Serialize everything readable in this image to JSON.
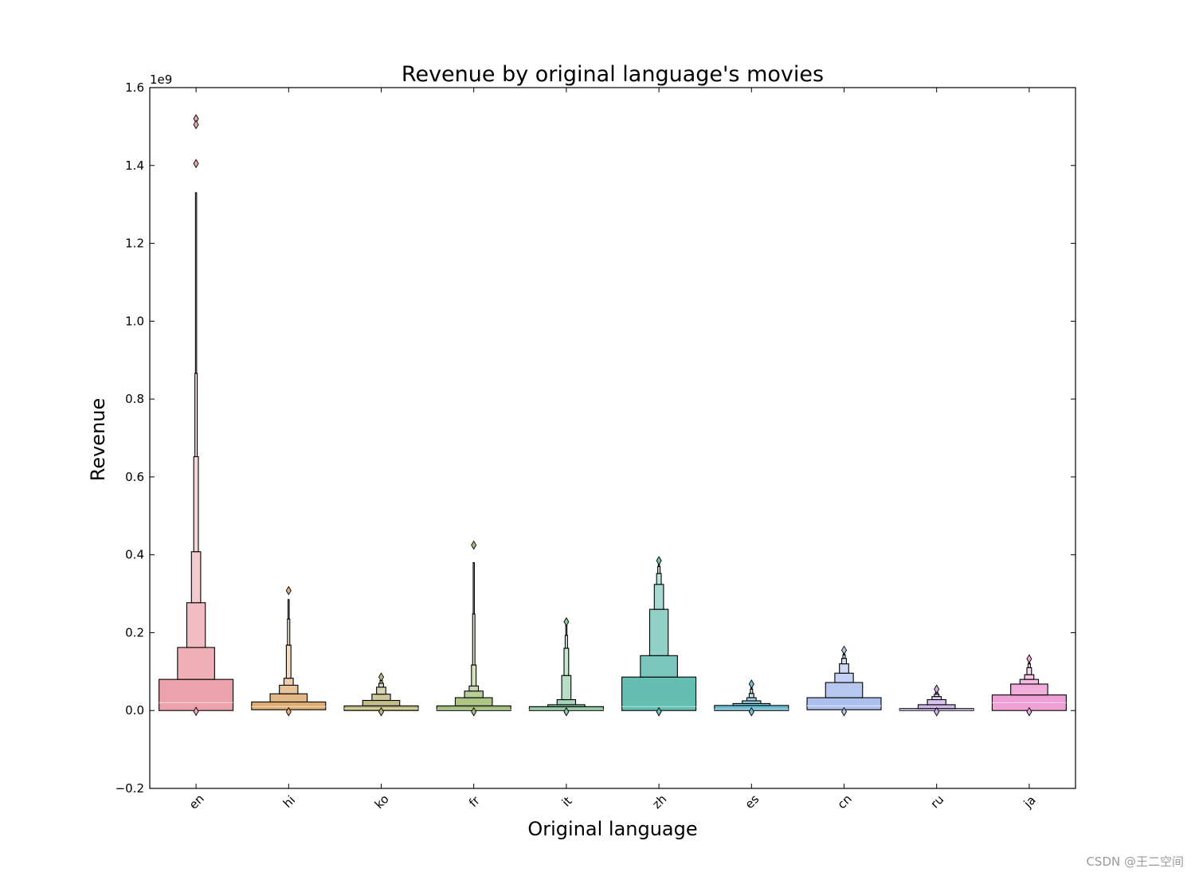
{
  "chart_data": {
    "type": "boxen",
    "title": "Revenue by original language's movies",
    "xlabel": "Original language",
    "ylabel": "Revenue",
    "y_offset_label": "1e9",
    "ylim": [
      -0.2,
      1.6
    ],
    "y_scale_multiplier": 1000000000,
    "yticks": [
      -0.2,
      0.0,
      0.2,
      0.4,
      0.6,
      0.8,
      1.0,
      1.2,
      1.4,
      1.6
    ],
    "ytick_labels": [
      "−0.2",
      "0.0",
      "0.2",
      "0.4",
      "0.6",
      "0.8",
      "1.0",
      "1.2",
      "1.4",
      "1.6"
    ],
    "grid": false,
    "legend": "none",
    "categories": [
      "en",
      "hi",
      "ko",
      "fr",
      "it",
      "zh",
      "es",
      "cn",
      "ru",
      "ja"
    ],
    "series": [
      {
        "category": "en",
        "color": "#e8929b",
        "median": 0.02,
        "boxes": [
          [
            0.0,
            0.08
          ],
          [
            0.08,
            0.162
          ],
          [
            0.162,
            0.277
          ],
          [
            0.277,
            0.408
          ],
          [
            0.408,
            0.652
          ],
          [
            0.652,
            0.866
          ],
          [
            0.866,
            1.33
          ]
        ],
        "outliers": [
          1.52,
          1.505,
          1.405,
          -0.002
        ]
      },
      {
        "category": "hi",
        "color": "#d99d5b",
        "median": 0.01,
        "boxes": [
          [
            0.002,
            0.022
          ],
          [
            0.022,
            0.043
          ],
          [
            0.043,
            0.065
          ],
          [
            0.065,
            0.083
          ],
          [
            0.083,
            0.168
          ],
          [
            0.168,
            0.235
          ],
          [
            0.235,
            0.285
          ]
        ],
        "outliers": [
          0.308,
          -0.003
        ]
      },
      {
        "category": "ko",
        "color": "#aba55d",
        "median": 0.005,
        "boxes": [
          [
            0.0,
            0.012
          ],
          [
            0.012,
            0.026
          ],
          [
            0.026,
            0.042
          ],
          [
            0.042,
            0.06
          ],
          [
            0.06,
            0.07
          ],
          [
            0.07,
            0.077
          ],
          [
            0.077,
            0.082
          ]
        ],
        "outliers": [
          0.086,
          -0.003
        ]
      },
      {
        "category": "fr",
        "color": "#8db058",
        "median": 0.003,
        "boxes": [
          [
            0.0,
            0.012
          ],
          [
            0.012,
            0.033
          ],
          [
            0.033,
            0.05
          ],
          [
            0.05,
            0.063
          ],
          [
            0.063,
            0.117
          ],
          [
            0.117,
            0.248
          ],
          [
            0.248,
            0.38
          ]
        ],
        "outliers": [
          0.425,
          -0.003
        ]
      },
      {
        "category": "it",
        "color": "#6cba8a",
        "median": 0.003,
        "boxes": [
          [
            0.0,
            0.01
          ],
          [
            0.01,
            0.015
          ],
          [
            0.015,
            0.028
          ],
          [
            0.028,
            0.09
          ],
          [
            0.09,
            0.16
          ],
          [
            0.16,
            0.193
          ],
          [
            0.193,
            0.22
          ]
        ],
        "outliers": [
          0.228,
          -0.003
        ]
      },
      {
        "category": "zh",
        "color": "#4ab2a4",
        "median": 0.01,
        "boxes": [
          [
            0.0,
            0.086
          ],
          [
            0.086,
            0.141
          ],
          [
            0.141,
            0.26
          ],
          [
            0.26,
            0.324
          ],
          [
            0.324,
            0.352
          ],
          [
            0.352,
            0.37
          ],
          [
            0.37,
            0.38
          ]
        ],
        "outliers": [
          0.385,
          -0.003
        ]
      },
      {
        "category": "es",
        "color": "#4eb0cb",
        "median": 0.003,
        "boxes": [
          [
            0.0,
            0.013
          ],
          [
            0.013,
            0.018
          ],
          [
            0.018,
            0.025
          ],
          [
            0.025,
            0.033
          ],
          [
            0.033,
            0.044
          ],
          [
            0.044,
            0.055
          ],
          [
            0.055,
            0.062
          ]
        ],
        "outliers": [
          0.068,
          -0.003
        ]
      },
      {
        "category": "cn",
        "color": "#9db4ea",
        "median": 0.012,
        "boxes": [
          [
            0.002,
            0.033
          ],
          [
            0.033,
            0.072
          ],
          [
            0.072,
            0.096
          ],
          [
            0.096,
            0.12
          ],
          [
            0.12,
            0.134
          ],
          [
            0.134,
            0.143
          ],
          [
            0.143,
            0.15
          ]
        ],
        "outliers": [
          0.155,
          -0.003
        ]
      },
      {
        "category": "ru",
        "color": "#c39de3",
        "median": 0.002,
        "boxes": [
          [
            0.0,
            0.005
          ],
          [
            0.005,
            0.015
          ],
          [
            0.015,
            0.028
          ],
          [
            0.028,
            0.036
          ],
          [
            0.036,
            0.042
          ],
          [
            0.042,
            0.047
          ],
          [
            0.047,
            0.052
          ]
        ],
        "outliers": [
          0.055,
          -0.003
        ]
      },
      {
        "category": "ja",
        "color": "#ec8fcf",
        "median": 0.02,
        "boxes": [
          [
            0.0,
            0.04
          ],
          [
            0.04,
            0.068
          ],
          [
            0.068,
            0.08
          ],
          [
            0.08,
            0.092
          ],
          [
            0.092,
            0.11
          ],
          [
            0.11,
            0.12
          ],
          [
            0.12,
            0.128
          ]
        ],
        "outliers": [
          0.133,
          -0.003
        ]
      }
    ]
  },
  "watermark": "CSDN @王二空间"
}
